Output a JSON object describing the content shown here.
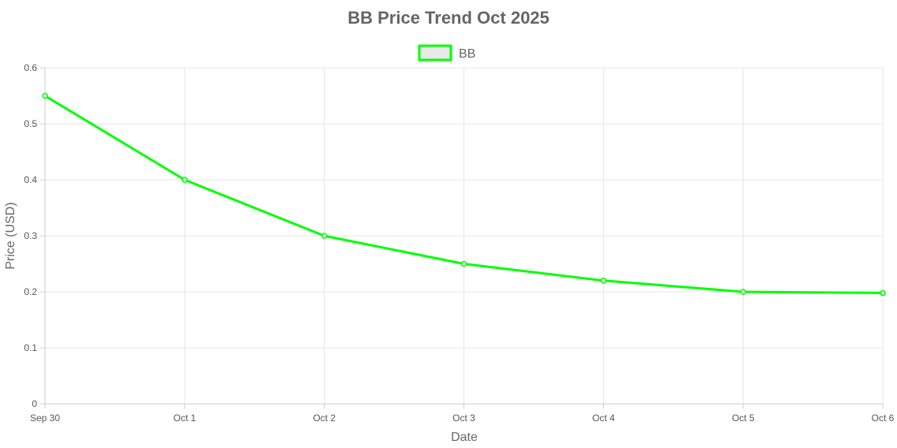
{
  "chart_data": {
    "type": "line",
    "title": "BB Price Trend Oct 2025",
    "xlabel": "Date",
    "ylabel": "Price (USD)",
    "categories": [
      "Sep 30",
      "Oct 1",
      "Oct 2",
      "Oct 3",
      "Oct 4",
      "Oct 5",
      "Oct 6"
    ],
    "series": [
      {
        "name": "BB",
        "values": [
          0.55,
          0.4,
          0.3,
          0.25,
          0.22,
          0.2,
          0.198
        ],
        "color": "#00ff00",
        "legend_fill": "#e8e8e8"
      }
    ],
    "ylim": [
      0,
      0.6
    ],
    "yticks": [
      "0",
      "0.1",
      "0.2",
      "0.3",
      "0.4",
      "0.5",
      "0.6"
    ],
    "grid": true,
    "legend_position": "top-center",
    "gridline_color": "#e5e5e5"
  }
}
